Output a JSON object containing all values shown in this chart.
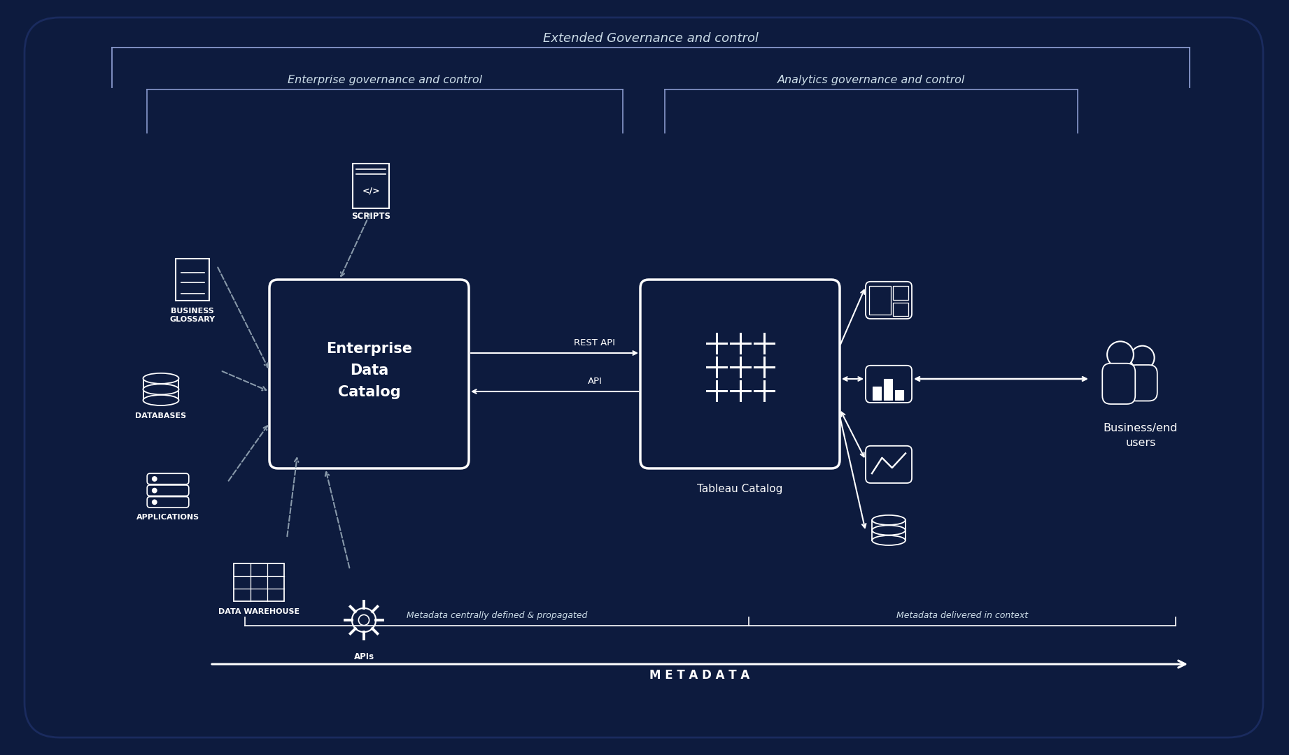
{
  "bg_color": "#0d1b3e",
  "white": "#ffffff",
  "bracket_color": "#8899cc",
  "label_color": "#ccdde8",
  "title": "Extended Governance and control",
  "enterprise_gov": "Enterprise governance and control",
  "analytics_gov": "Analytics governance and control",
  "edc_label": "Enterprise\nData\nCatalog",
  "tableau_label": "Tableau Catalog",
  "rest_api_label": "REST API",
  "api_label": "API",
  "metadata_label": "M E T A D A T A",
  "meta_left_label": "Metadata centrally defined & propagated",
  "meta_right_label": "Metadata delivered in context",
  "business_users_label": "Business/end\nusers",
  "scripts_label": "SCRIPTS",
  "bglossary_label": "BUSINESS\nGLOSSARY",
  "databases_label": "DATABASES",
  "applications_label": "APPLICATIONS",
  "warehouse_label": "DATA WAREHOUSE",
  "apis_label": "APIs"
}
